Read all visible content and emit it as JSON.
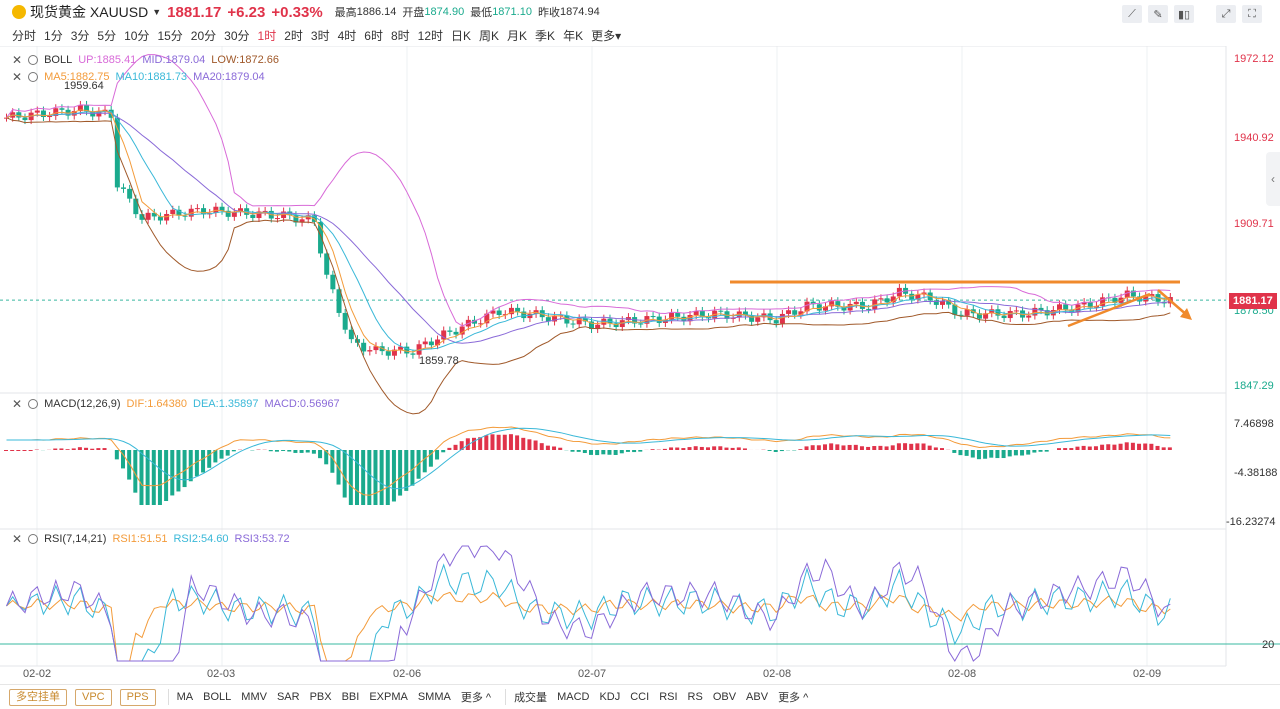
{
  "header": {
    "title": "现货黄金 XAUUSD",
    "price": "1881.17",
    "change": "+6.23",
    "change_pct": "+0.33%",
    "high_label": "最高",
    "high": "1886.14",
    "open_label": "开盘",
    "open": "1874.90",
    "low_label": "最低",
    "low": "1871.10",
    "prev_label": "昨收",
    "prev": "1874.94"
  },
  "periods": [
    "分时",
    "1分",
    "3分",
    "5分",
    "10分",
    "15分",
    "20分",
    "30分",
    "1时",
    "2时",
    "3时",
    "4时",
    "6时",
    "8时",
    "12时",
    "日K",
    "周K",
    "月K",
    "季K",
    "年K",
    "更多"
  ],
  "active_period": "1时",
  "legends": {
    "boll": {
      "name": "BOLL",
      "up": "UP:1885.41",
      "mid": "MID:1879.04",
      "low": "LOW:1872.66"
    },
    "ma": {
      "ma5": "MA5:1882.75",
      "ma10": "MA10:1881.73",
      "ma20": "MA20:1879.04"
    },
    "macd": {
      "name": "MACD(12,26,9)",
      "dif": "DIF:1.64380",
      "dea": "DEA:1.35897",
      "macd": "MACD:0.56967"
    },
    "rsi": {
      "name": "RSI(7,14,21)",
      "r1": "RSI1:51.51",
      "r2": "RSI2:54.60",
      "r3": "RSI3:53.72"
    }
  },
  "price_axis": [
    "1972.12",
    "1940.92",
    "1909.71",
    "1878.50",
    "1847.29"
  ],
  "current_price_tag": "1881.17",
  "macd_axis": [
    "7.46898",
    "-4.38188",
    "-16.23274"
  ],
  "rsi_axis": [
    "20"
  ],
  "annotations": {
    "high_mark": "1959.64",
    "low_mark": "1859.78"
  },
  "date_axis": [
    "02-02",
    "02-03",
    "02-06",
    "02-07",
    "02-08",
    "02-08",
    "02-09"
  ],
  "bottom": {
    "tags": [
      "多空挂单",
      "VPC",
      "PPS"
    ],
    "main_indicators": [
      "MA",
      "BOLL",
      "MMV",
      "SAR",
      "PBX",
      "BBI",
      "EXPMA",
      "SMMA",
      "更多 ^"
    ],
    "sub_indicators": [
      "成交量",
      "MACD",
      "KDJ",
      "CCI",
      "RSI",
      "RS",
      "OBV",
      "ABV",
      "更多 ^"
    ]
  },
  "colors": {
    "up": "#e0334a",
    "down": "#1aaa8d",
    "boll_up": "#d86ad8",
    "boll_low": "#a0592a",
    "ma5": "#f39b3a",
    "ma10": "#3ab8d8",
    "ma20": "#8a6ad8",
    "arrow": "#f08a2c"
  }
}
